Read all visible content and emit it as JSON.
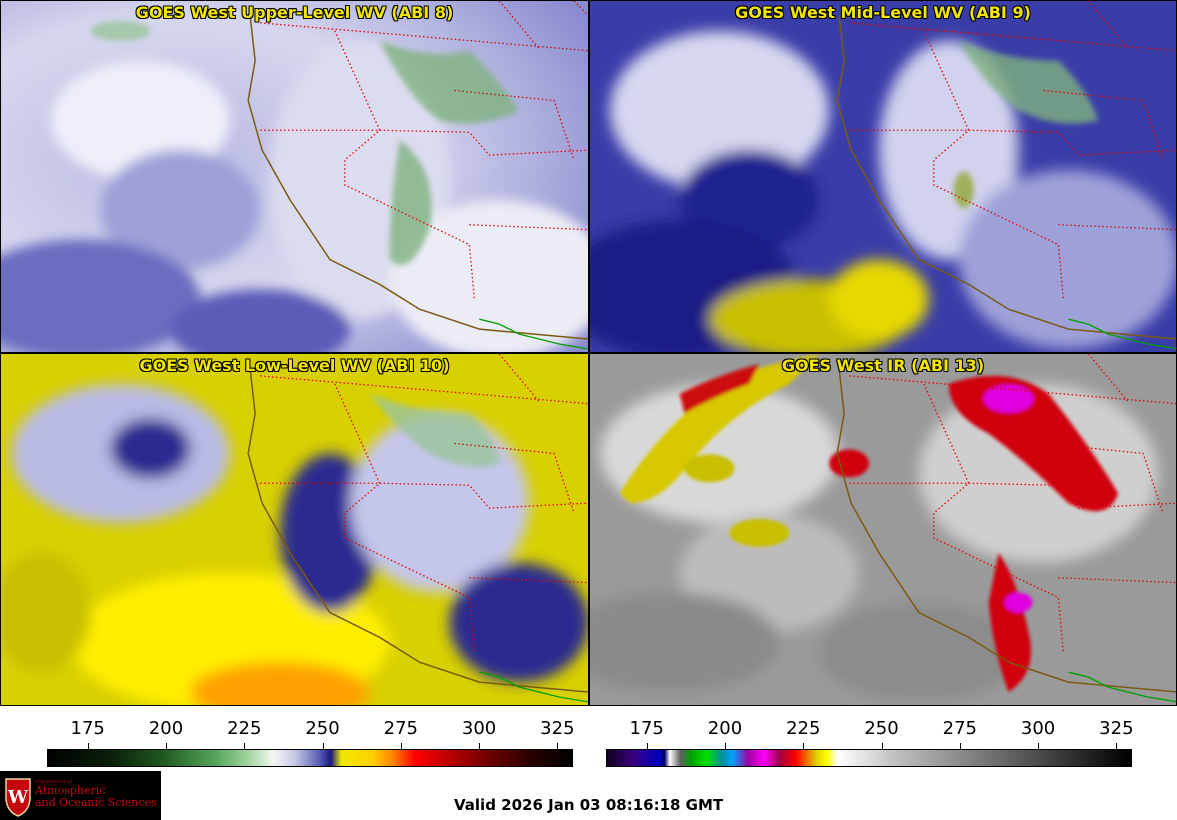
{
  "panels": [
    {
      "title": "GOES West Upper-Level WV (ABI 8)"
    },
    {
      "title": "GOES West Mid-Level WV (ABI 9)"
    },
    {
      "title": "GOES West Low-Level WV (ABI 10)"
    },
    {
      "title": "GOES West IR (ABI 13)"
    }
  ],
  "colorbar_wv": {
    "ticks": [
      "175",
      "200",
      "225",
      "250",
      "275",
      "300",
      "325"
    ],
    "values": [
      175,
      200,
      225,
      250,
      275,
      300,
      325
    ],
    "min": 162,
    "max": 330
  },
  "colorbar_ir": {
    "ticks": [
      "175",
      "200",
      "225",
      "250",
      "275",
      "300",
      "325"
    ],
    "values": [
      175,
      200,
      225,
      250,
      275,
      300,
      325
    ],
    "min": 162,
    "max": 330
  },
  "logo": {
    "dept": "Department of",
    "line1": "Atmospheric",
    "line2": "and Oceanic Sciences",
    "icon": "uw-crest-icon"
  },
  "valid_time": "Valid 2026 Jan 03 08:16:18 GMT",
  "colors": {
    "state_border": "#e00000",
    "coast": "#7a5a10",
    "mexico_border": "#00a000",
    "title": "#f2e600"
  }
}
